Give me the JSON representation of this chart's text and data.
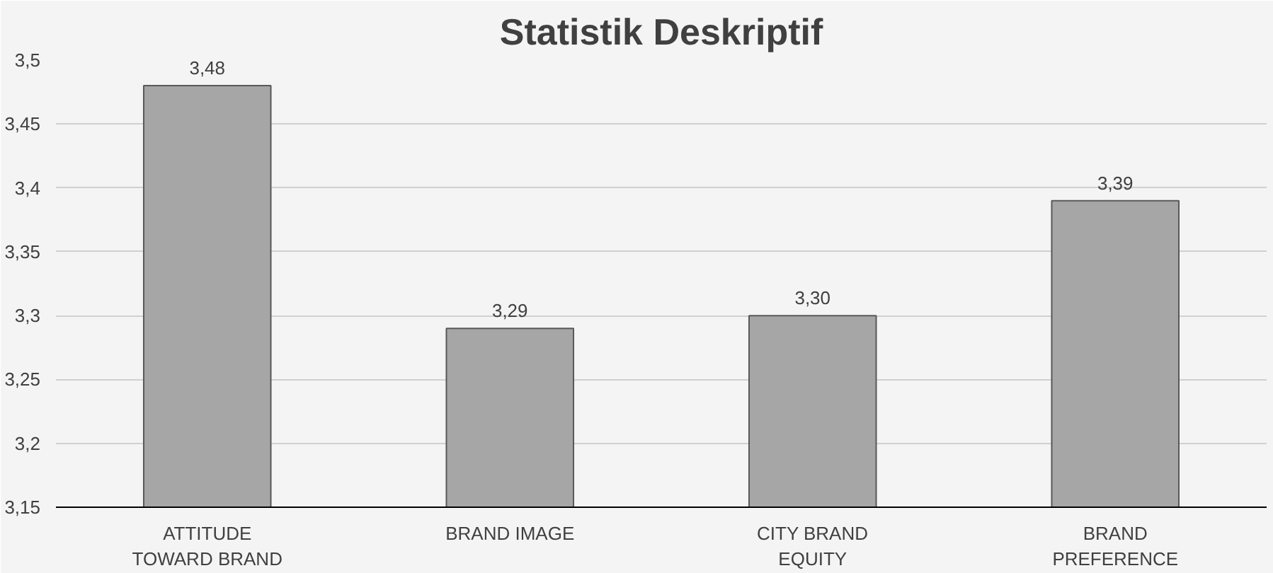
{
  "chart_data": {
    "type": "bar",
    "title": "Statistik Deskriptif",
    "categories": [
      "ATTITUDE TOWARD BRAND",
      "BRAND IMAGE",
      "CITY BRAND EQUITY",
      "BRAND PREFERENCE"
    ],
    "values": [
      3.48,
      3.29,
      3.3,
      3.39
    ],
    "value_labels": [
      "3,48",
      "3,29",
      "3,30",
      "3,39"
    ],
    "color": "#a6a6a6",
    "ylim": [
      3.15,
      3.5
    ],
    "yticks": [
      {
        "value": 3.15,
        "label": "3,15"
      },
      {
        "value": 3.2,
        "label": "3,2"
      },
      {
        "value": 3.25,
        "label": "3,25"
      },
      {
        "value": 3.3,
        "label": "3,3"
      },
      {
        "value": 3.35,
        "label": "3,35"
      },
      {
        "value": 3.4,
        "label": "3,4"
      },
      {
        "value": 3.45,
        "label": "3,45"
      },
      {
        "value": 3.5,
        "label": "3,5"
      }
    ],
    "grid": "y"
  }
}
